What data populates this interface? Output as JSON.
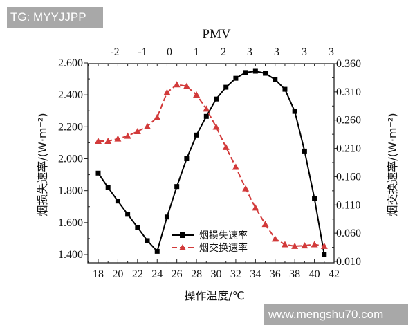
{
  "watermarks": {
    "top": "TG: MYYJJPP",
    "bottom": "www.mengshu70.com"
  },
  "colors": {
    "exergy_loss": "#000000",
    "exergy_exchange": "#d23a3a",
    "axis": "#222222"
  },
  "chart_data": {
    "type": "line",
    "title": "",
    "xlabel": "操作温度/℃",
    "ylabel_left": "烟损失速率/(W·m⁻²)",
    "ylabel_right": "烟交换速率/(W·m⁻²)",
    "top_axis_title": "PMV",
    "top_axis_ticks": [
      "-2",
      "-1",
      "0",
      "1",
      "2",
      "3",
      "3",
      "3",
      "3"
    ],
    "xlim": [
      17,
      42
    ],
    "x_ticks": [
      18,
      20,
      22,
      24,
      26,
      28,
      30,
      32,
      34,
      36,
      38,
      40,
      42
    ],
    "ylim_left": [
      1.35,
      2.6
    ],
    "y_ticks_left": [
      "2.600",
      "2.400",
      "2.200",
      "2.000",
      "1.800",
      "1.600",
      "1.400"
    ],
    "ylim_right": [
      0.0,
      0.36
    ],
    "y_ticks_right": [
      "0.360",
      "0.310",
      "0.260",
      "0.210",
      "0.160",
      "0.110",
      "0.060",
      "0.010"
    ],
    "grid": false,
    "legend_position": "lower-center",
    "x": [
      18,
      19,
      20,
      21,
      22,
      23,
      24,
      25,
      26,
      27,
      28,
      29,
      30,
      31,
      32,
      33,
      34,
      35,
      36,
      37,
      38,
      39,
      40,
      41
    ],
    "series": [
      {
        "name": "烟损失速率",
        "axis": "left",
        "marker": "square",
        "line": "solid",
        "values": [
          1.91,
          1.82,
          1.735,
          1.652,
          1.57,
          1.487,
          1.42,
          1.635,
          1.826,
          2.0,
          2.148,
          2.265,
          2.374,
          2.448,
          2.504,
          2.54,
          2.548,
          2.535,
          2.496,
          2.435,
          2.296,
          2.048,
          1.752,
          1.4
        ]
      },
      {
        "name": "烟交换速率",
        "axis": "right",
        "marker": "triangle",
        "line": "dashed",
        "values": [
          0.223,
          0.223,
          0.227,
          0.232,
          0.24,
          0.249,
          0.265,
          0.309,
          0.323,
          0.32,
          0.305,
          0.28,
          0.248,
          0.212,
          0.177,
          0.139,
          0.105,
          0.076,
          0.05,
          0.04,
          0.037,
          0.038,
          0.04,
          0.037
        ]
      }
    ]
  }
}
